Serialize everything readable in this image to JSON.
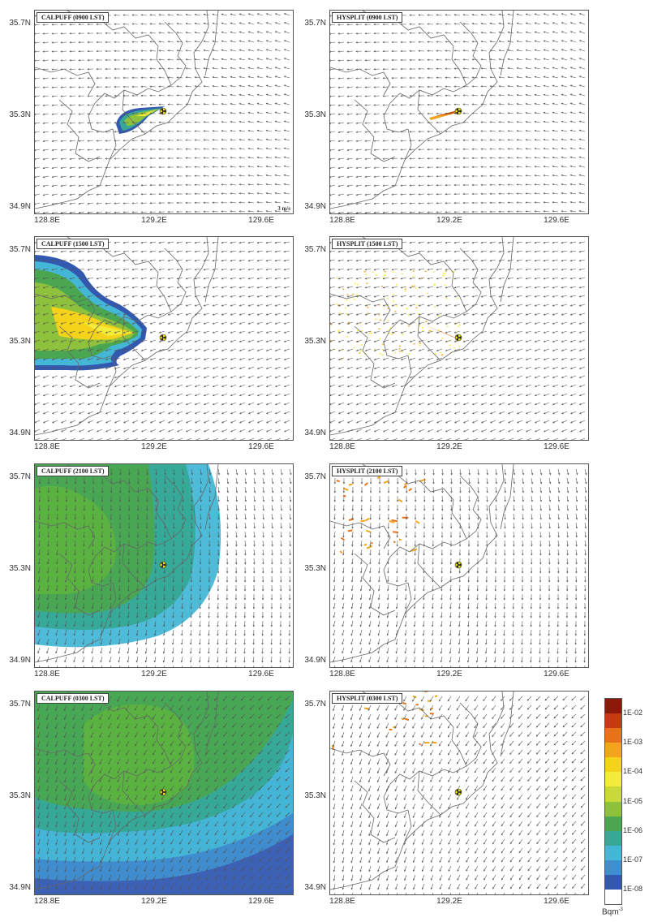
{
  "panels": [
    {
      "title": "CALPUFF (0900 LST)",
      "model": "calpuff",
      "time": "0900",
      "ref_vector": "3 m/s"
    },
    {
      "title": "HYSPLIT (0900 LST)",
      "model": "hysplit",
      "time": "0900"
    },
    {
      "title": "CALPUFF (1500 LST)",
      "model": "calpuff",
      "time": "1500"
    },
    {
      "title": "HYSPLIT (1500 LST)",
      "model": "hysplit",
      "time": "1500"
    },
    {
      "title": "CALPUFF (2100 LST)",
      "model": "calpuff",
      "time": "2100"
    },
    {
      "title": "HYSPLIT (2100 LST)",
      "model": "hysplit",
      "time": "2100"
    },
    {
      "title": "CALPUFF (0300 LST)",
      "model": "calpuff",
      "time": "0300"
    },
    {
      "title": "HYSPLIT (0300 LST)",
      "model": "hysplit",
      "time": "0300"
    }
  ],
  "axes": {
    "lat_ticks": [
      "35.7N",
      "35.3N",
      "34.9N"
    ],
    "lon_ticks": [
      "128.8E",
      "129.2E",
      "129.6E"
    ]
  },
  "legend": {
    "labels": [
      "1E-02",
      "1E-03",
      "1E-04",
      "1E-05",
      "1E-06",
      "1E-07",
      "1E-08"
    ],
    "unit": "Bqm",
    "unit_sup": "-3",
    "colors": [
      "#8b1a0a",
      "#c63a12",
      "#e8721a",
      "#f2a41d",
      "#f5d31b",
      "#f3ec3a",
      "#c9d93a",
      "#8fc23c",
      "#4aa650",
      "#36a895",
      "#45b7d6",
      "#3f8fd0",
      "#3358b0",
      "#ffffff"
    ]
  }
}
